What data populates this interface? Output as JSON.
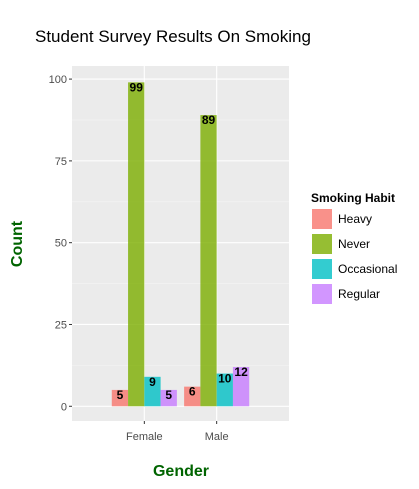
{
  "chart_data": {
    "type": "bar",
    "title": "Student Survey Results On Smoking",
    "xlabel": "Gender",
    "ylabel": "Count",
    "categories": [
      "Female",
      "Male"
    ],
    "series": [
      {
        "name": "Heavy",
        "values": [
          5,
          6
        ],
        "color": "#F8766D"
      },
      {
        "name": "Never",
        "values": [
          99,
          89
        ],
        "color": "#7CAE00"
      },
      {
        "name": "Occasional",
        "values": [
          9,
          10
        ],
        "color": "#00BFC4"
      },
      {
        "name": "Regular",
        "values": [
          5,
          12
        ],
        "color": "#C77CFF"
      }
    ],
    "ylim": [
      -4.5,
      104
    ],
    "yticks": [
      0,
      25,
      50,
      75,
      100
    ],
    "grid": true,
    "legend": {
      "title": "Smoking Habit",
      "position": "right"
    },
    "panel_background": "#EBEBEB",
    "axis_title_color": "#006400"
  }
}
